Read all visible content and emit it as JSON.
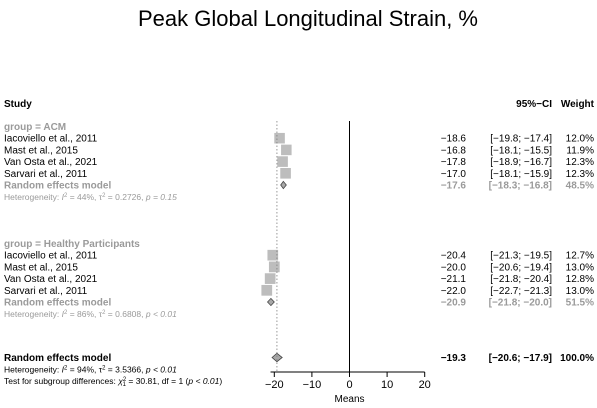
{
  "chart_data": {
    "type": "forest",
    "title": "Peak Global Longitudinal Strain, %",
    "xlabel": "Means",
    "xlim": [
      -21,
      20
    ],
    "xticks": [
      -20,
      -10,
      0,
      10,
      20
    ],
    "xtick_labels": [
      "−20",
      "−10",
      "0",
      "10",
      "20"
    ],
    "header": {
      "study": "Study",
      "ci": "95%−CI",
      "weight": "Weight"
    },
    "groups": [
      {
        "label": "group = ACM",
        "studies": [
          {
            "name": "Iacoviello et al., 2011",
            "mean": -18.6,
            "lower": -19.8,
            "upper": -17.4,
            "weight": 12.0,
            "mean_text": "−18.6",
            "ci_text": "[−19.8; −17.4]",
            "weight_text": "12.0%"
          },
          {
            "name": "Mast et al., 2015",
            "mean": -16.8,
            "lower": -18.1,
            "upper": -15.5,
            "weight": 11.9,
            "mean_text": "−16.8",
            "ci_text": "[−18.1; −15.5]",
            "weight_text": "11.9%"
          },
          {
            "name": "Van Osta et al., 2021",
            "mean": -17.8,
            "lower": -18.9,
            "upper": -16.7,
            "weight": 12.3,
            "mean_text": "−17.8",
            "ci_text": "[−18.9; −16.7]",
            "weight_text": "12.3%"
          },
          {
            "name": "Sarvari et al., 2011",
            "mean": -17.0,
            "lower": -18.1,
            "upper": -15.9,
            "weight": 12.3,
            "mean_text": "−17.0",
            "ci_text": "[−18.1; −15.9]",
            "weight_text": "12.3%"
          }
        ],
        "pooled": {
          "name": "Random effects model",
          "mean": -17.6,
          "lower": -18.3,
          "upper": -16.8,
          "weight": 48.5,
          "mean_text": "−17.6",
          "ci_text": "[−18.3; −16.8]",
          "weight_text": "48.5%"
        },
        "heterogeneity": {
          "prefix": "Heterogeneity: ",
          "i2": "44%",
          "tau2": "0.2726",
          "p": "p = 0.15"
        }
      },
      {
        "label": "group = Healthy Participants",
        "studies": [
          {
            "name": "Iacoviello et al., 2011",
            "mean": -20.4,
            "lower": -21.3,
            "upper": -19.5,
            "weight": 12.7,
            "mean_text": "−20.4",
            "ci_text": "[−21.3; −19.5]",
            "weight_text": "12.7%"
          },
          {
            "name": "Mast et al., 2015",
            "mean": -20.0,
            "lower": -20.6,
            "upper": -19.4,
            "weight": 13.0,
            "mean_text": "−20.0",
            "ci_text": "[−20.6; −19.4]",
            "weight_text": "13.0%"
          },
          {
            "name": "Van Osta et al., 2021",
            "mean": -21.1,
            "lower": -21.8,
            "upper": -20.4,
            "weight": 12.8,
            "mean_text": "−21.1",
            "ci_text": "[−21.8; −20.4]",
            "weight_text": "12.8%"
          },
          {
            "name": "Sarvari et al., 2011",
            "mean": -22.0,
            "lower": -22.7,
            "upper": -21.3,
            "weight": 13.0,
            "mean_text": "−22.0",
            "ci_text": "[−22.7; −21.3]",
            "weight_text": "13.0%"
          }
        ],
        "pooled": {
          "name": "Random effects model",
          "mean": -20.9,
          "lower": -21.8,
          "upper": -20.0,
          "weight": 51.5,
          "mean_text": "−20.9",
          "ci_text": "[−21.8; −20.0]",
          "weight_text": "51.5%"
        },
        "heterogeneity": {
          "prefix": "Heterogeneity: ",
          "i2": "86%",
          "tau2": "0.6808",
          "p": "p < 0.01"
        }
      }
    ],
    "overall": {
      "name": "Random effects model",
      "mean": -19.3,
      "lower": -20.6,
      "upper": -17.9,
      "weight": 100.0,
      "mean_text": "−19.3",
      "ci_text": "[−20.6; −17.9]",
      "weight_text": "100.0%",
      "heterogeneity": {
        "prefix": "Heterogeneity: ",
        "i2": "94%",
        "tau2": "3.5366",
        "p": "p < 0.01"
      },
      "subgroup_test": {
        "prefix": "Test for subgroup differences: ",
        "chi2": "30.81",
        "df": "df = 1",
        "p": "p < 0.01"
      }
    },
    "colors": {
      "text": "#000000",
      "grey_text": "#9a9a9a",
      "study_box": "#bdbdbd",
      "diamond_fill": "#a8a8a8",
      "axis": "#000000",
      "pooled_line": "#7f7f7f"
    }
  }
}
